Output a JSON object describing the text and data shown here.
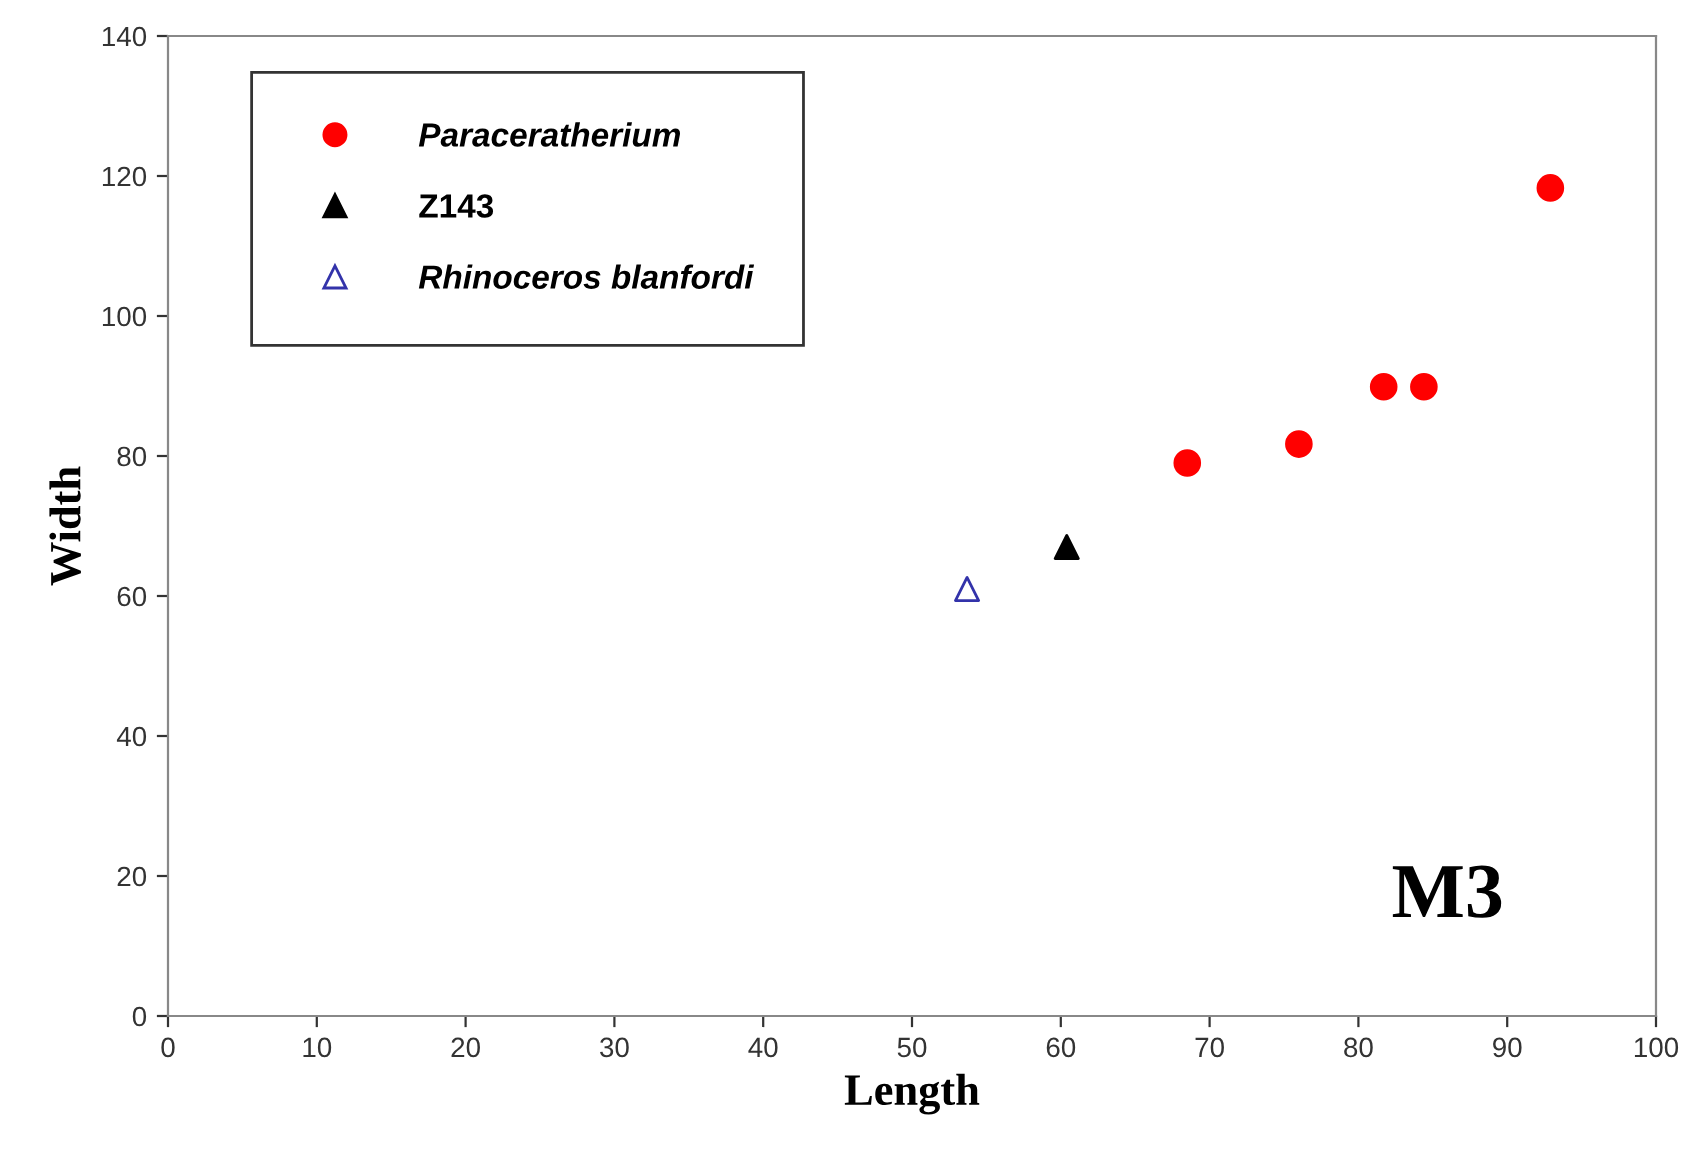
{
  "chart_data": {
    "type": "scatter",
    "xlabel": "Length",
    "ylabel": "Width",
    "xlim": [
      0,
      100
    ],
    "ylim": [
      0,
      140
    ],
    "xticks": [
      0,
      10,
      20,
      30,
      40,
      50,
      60,
      70,
      80,
      90,
      100
    ],
    "yticks": [
      0,
      20,
      40,
      60,
      80,
      100,
      120,
      140
    ],
    "grid": false,
    "legend": "top left",
    "annotations": [
      {
        "text": "M3"
      }
    ],
    "series": [
      {
        "name": "Paraceratherium",
        "color": "#ff0000",
        "marker": "circle",
        "x": [
          68.5,
          76.0,
          81.7,
          84.4,
          92.9
        ],
        "values": [
          79,
          81.7,
          89.9,
          89.9,
          118.3
        ]
      },
      {
        "name": "Z143",
        "color": "#000000",
        "marker": "triangle",
        "x": [
          60.4
        ],
        "values": [
          67
        ]
      },
      {
        "name": "Rhinoceros blanfordi",
        "color": "#3333aa",
        "marker": "triangle_open",
        "x": [
          53.7
        ],
        "values": [
          61
        ]
      }
    ]
  }
}
